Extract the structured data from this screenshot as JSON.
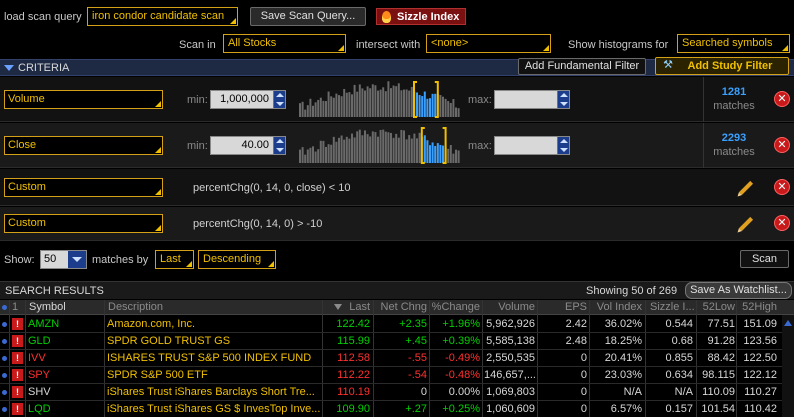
{
  "top": {
    "load_label": "load scan query",
    "query_value": "iron condor candidate scan",
    "save_button": "Save Scan Query...",
    "sizzle_button": "Sizzle Index",
    "scan_in_label": "Scan in",
    "scan_in_value": "All Stocks",
    "intersect_label": "intersect with",
    "intersect_value": "<none>",
    "histograms_label": "Show histograms for",
    "histograms_value": "Searched symbols"
  },
  "criteria": {
    "title": "CRITERIA",
    "add_fundamental": "Add Fundamental Filter",
    "add_study": "Add Study Filter",
    "rows": [
      {
        "field": "Volume",
        "min_label": "min:",
        "min_value": "1,000,000",
        "max_label": "max:",
        "max_value": "",
        "matches": "1281",
        "matches_label": "matches"
      },
      {
        "field": "Close",
        "min_label": "min:",
        "min_value": "40.00",
        "max_label": "max:",
        "max_value": "",
        "matches": "2293",
        "matches_label": "matches"
      },
      {
        "field": "Custom",
        "formula": "percentChg(0, 14, 0, close) < 10"
      },
      {
        "field": "Custom",
        "formula": "percentChg(0, 14, 0) > -10"
      }
    ]
  },
  "controls": {
    "show_label": "Show:",
    "show_value": "50",
    "matches_by_label": "matches by",
    "sort_field": "Last",
    "sort_order": "Descending",
    "scan_button": "Scan"
  },
  "results": {
    "title": "SEARCH RESULTS",
    "showing": "Showing 50 of 269",
    "save_watchlist": "Save As Watchlist...",
    "columns": {
      "num": "1",
      "symbol": "Symbol",
      "description": "Description",
      "last": "Last",
      "net_chng": "Net Chng",
      "pct_change": "%Change",
      "volume": "Volume",
      "eps": "EPS",
      "vol_index": "Vol Index",
      "sizzle": "Sizzle I...",
      "low52": "52Low",
      "high52": "52High"
    },
    "rows": [
      {
        "symbol": "AMZN",
        "description": "Amazon.com, Inc.",
        "last": "122.42",
        "net_chng": "+2.35",
        "pct_change": "+1.96%",
        "volume": "5,962,926",
        "eps": "2.42",
        "vol_index": "36.02%",
        "sizzle": "0.544",
        "low52": "77.51",
        "high52": "151.09",
        "dir": "up"
      },
      {
        "symbol": "GLD",
        "description": "SPDR GOLD TRUST GS",
        "last": "115.99",
        "net_chng": "+.45",
        "pct_change": "+0.39%",
        "volume": "5,585,138",
        "eps": "2.48",
        "vol_index": "18.25%",
        "sizzle": "0.68",
        "low52": "91.28",
        "high52": "123.56",
        "dir": "up"
      },
      {
        "symbol": "IVV",
        "description": "ISHARES TRUST S&P 500 INDEX FUND",
        "last": "112.58",
        "net_chng": "-.55",
        "pct_change": "-0.49%",
        "volume": "2,550,535",
        "eps": "0",
        "vol_index": "20.41%",
        "sizzle": "0.855",
        "low52": "88.42",
        "high52": "122.50",
        "dir": "down"
      },
      {
        "symbol": "SPY",
        "description": "SPDR S&P 500 ETF",
        "last": "112.22",
        "net_chng": "-.54",
        "pct_change": "-0.48%",
        "volume": "146,657,...",
        "eps": "0",
        "vol_index": "23.03%",
        "sizzle": "0.634",
        "low52": "98.115",
        "high52": "122.12",
        "dir": "down"
      },
      {
        "symbol": "SHV",
        "description": "iShares Trust iShares Barclays Short Tre...",
        "last": "110.19",
        "net_chng": "0",
        "pct_change": "0.00%",
        "volume": "1,069,803",
        "eps": "0",
        "vol_index": "N/A",
        "sizzle": "N/A",
        "low52": "110.09",
        "high52": "110.27",
        "dir": "flat"
      },
      {
        "symbol": "LQD",
        "description": "iShares Trust iShares GS $ InvesTop Inve...",
        "last": "109.90",
        "net_chng": "+.27",
        "pct_change": "+0.25%",
        "volume": "1,060,609",
        "eps": "0",
        "vol_index": "6.57%",
        "sizzle": "0.157",
        "low52": "101.54",
        "high52": "110.42",
        "dir": "up"
      }
    ]
  },
  "colors": {
    "accent": "#f0c000",
    "up": "#00d000",
    "down": "#ff3030",
    "link_blue": "#3aa0ff"
  }
}
